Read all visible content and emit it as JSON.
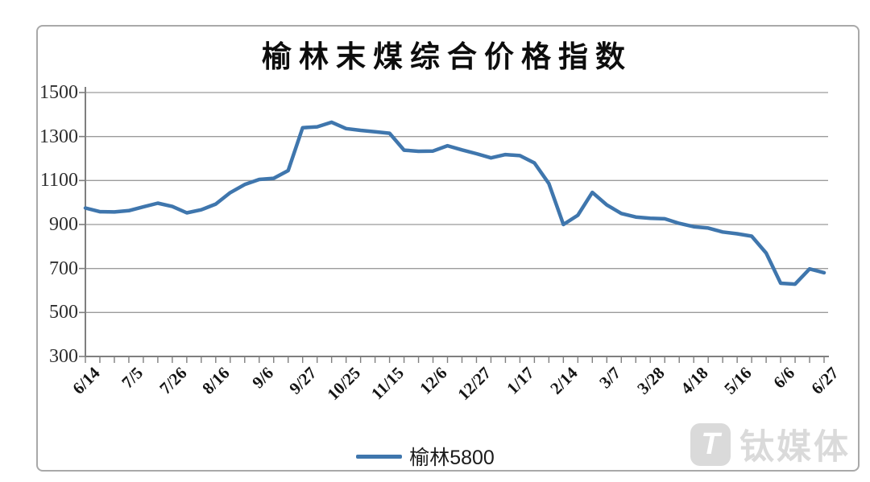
{
  "title": "榆林末煤综合价格指数",
  "legend": {
    "label": "榆林5800"
  },
  "watermark": {
    "logo_glyph": "T",
    "text": "钛媒体"
  },
  "colors": {
    "line": "#3f76ad",
    "grid": "#9b9b9b",
    "axis": "#7f7f7f",
    "title": "#0d0d0d",
    "tick_label": "#2e2e2e",
    "watermark": "#d9d9d9"
  },
  "chart_data": {
    "type": "line",
    "title": "榆林末煤综合价格指数",
    "ylabel": "",
    "xlabel": "",
    "ylim": [
      300,
      1500
    ],
    "y_ticks": [
      300,
      500,
      700,
      900,
      1100,
      1300,
      1500
    ],
    "grid": "horizontal",
    "legend_position": "bottom",
    "x_tick_labels": [
      "6/14",
      "7/5",
      "7/26",
      "8/16",
      "9/6",
      "9/27",
      "10/25",
      "11/15",
      "12/6",
      "12/27",
      "1/17",
      "2/14",
      "3/7",
      "3/28",
      "4/18",
      "5/16",
      "6/6",
      "6/27"
    ],
    "label_every": 3,
    "series": [
      {
        "name": "榆林5800",
        "values": [
          975,
          958,
          957,
          963,
          980,
          997,
          982,
          953,
          967,
          993,
          1045,
          1082,
          1105,
          1110,
          1145,
          1340,
          1344,
          1365,
          1336,
          1328,
          1322,
          1315,
          1238,
          1233,
          1234,
          1258,
          1239,
          1222,
          1203,
          1218,
          1213,
          1180,
          1086,
          900,
          942,
          1046,
          989,
          950,
          934,
          928,
          926,
          905,
          890,
          884,
          866,
          858,
          847,
          770,
          633,
          629,
          698,
          681
        ]
      }
    ]
  }
}
